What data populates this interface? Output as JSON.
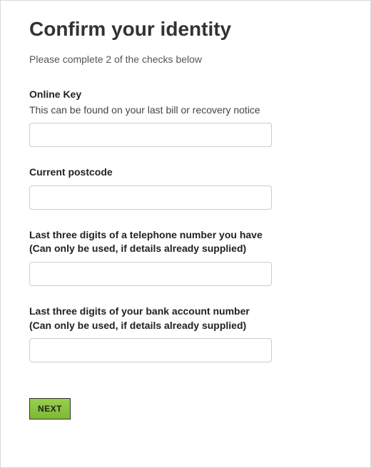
{
  "page": {
    "title": "Confirm your identity",
    "instructions": "Please complete 2 of the checks below"
  },
  "fields": {
    "onlineKey": {
      "label": "Online Key",
      "help": "This can be found on your last bill or recovery notice",
      "value": ""
    },
    "postcode": {
      "label": "Current postcode",
      "value": ""
    },
    "phoneDigits": {
      "label": "Last three digits of a telephone number you have",
      "sub": "(Can only be used, if details already supplied)",
      "value": ""
    },
    "bankDigits": {
      "label": "Last three digits of your bank account number",
      "sub": "(Can only be used, if details already supplied)",
      "value": ""
    }
  },
  "actions": {
    "next_label": "NEXT"
  },
  "styling": {
    "page_background": "#ffffff",
    "border_color": "#d9d9d9",
    "title_color": "#333333",
    "title_fontsize": 28,
    "text_color": "#555555",
    "label_color": "#222222",
    "input_border": "#cccccc",
    "input_width": 340,
    "input_height": 34,
    "button_bg": "#8ac440",
    "button_border": "#333333",
    "button_text": "#222222"
  }
}
